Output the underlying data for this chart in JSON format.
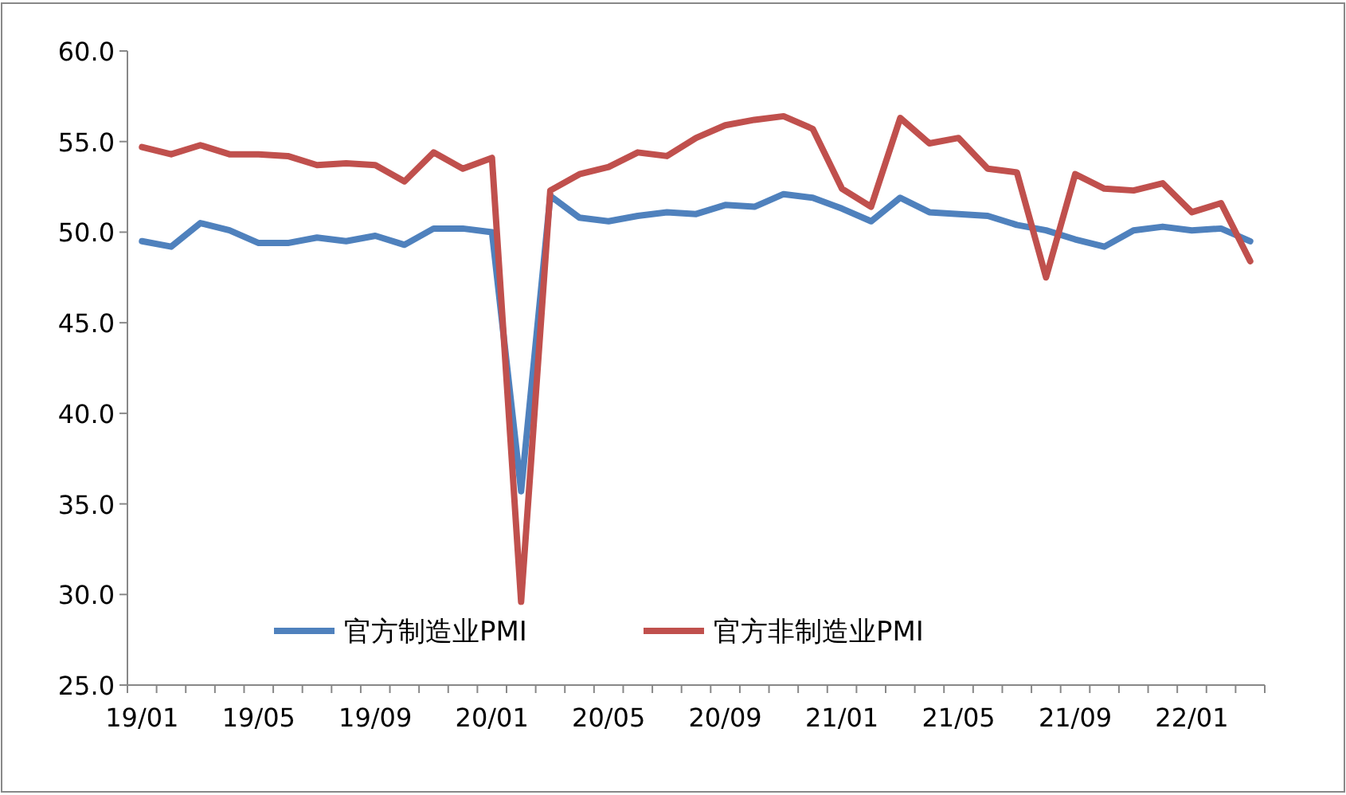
{
  "chart_data": {
    "type": "line",
    "categories": [
      "19/01",
      null,
      null,
      null,
      "19/05",
      null,
      null,
      null,
      "19/09",
      null,
      null,
      null,
      "20/01",
      null,
      null,
      null,
      "20/05",
      null,
      null,
      null,
      "20/09",
      null,
      null,
      null,
      "21/01",
      null,
      null,
      null,
      "21/05",
      null,
      null,
      null,
      "21/09",
      null,
      null,
      null,
      "22/01",
      null,
      null
    ],
    "series": [
      {
        "name": "官方制造业PMI",
        "color": "#4f81bd",
        "values": [
          49.5,
          49.2,
          50.5,
          50.1,
          49.4,
          49.4,
          49.7,
          49.5,
          49.8,
          49.3,
          50.2,
          50.2,
          50.0,
          35.7,
          52.0,
          50.8,
          50.6,
          50.9,
          51.1,
          51.0,
          51.5,
          51.4,
          52.1,
          51.9,
          51.3,
          50.6,
          51.9,
          51.1,
          51.0,
          50.9,
          50.4,
          50.1,
          49.6,
          49.2,
          50.1,
          50.3,
          50.1,
          50.2,
          49.5
        ]
      },
      {
        "name": "官方非制造业PMI",
        "color": "#c0504d",
        "values": [
          54.7,
          54.3,
          54.8,
          54.3,
          54.3,
          54.2,
          53.7,
          53.8,
          53.7,
          52.8,
          54.4,
          53.5,
          54.1,
          29.6,
          52.3,
          53.2,
          53.6,
          54.4,
          54.2,
          55.2,
          55.9,
          56.2,
          56.4,
          55.7,
          52.4,
          51.4,
          56.3,
          54.9,
          55.2,
          53.5,
          53.3,
          47.5,
          53.2,
          52.4,
          52.3,
          52.7,
          51.1,
          51.6,
          48.4
        ]
      }
    ],
    "ylim": [
      25,
      60
    ],
    "yticks": [
      {
        "value": 25,
        "label": "25.0"
      },
      {
        "value": 30,
        "label": "30.0"
      },
      {
        "value": 35,
        "label": "35.0"
      },
      {
        "value": 40,
        "label": "40.0"
      },
      {
        "value": 45,
        "label": "45.0"
      },
      {
        "value": 50,
        "label": "50.0"
      },
      {
        "value": 55,
        "label": "55.0"
      },
      {
        "value": 60,
        "label": "60.0"
      }
    ],
    "grid": false,
    "legend": "bottom left",
    "marker": "none",
    "line_style": "solid"
  }
}
